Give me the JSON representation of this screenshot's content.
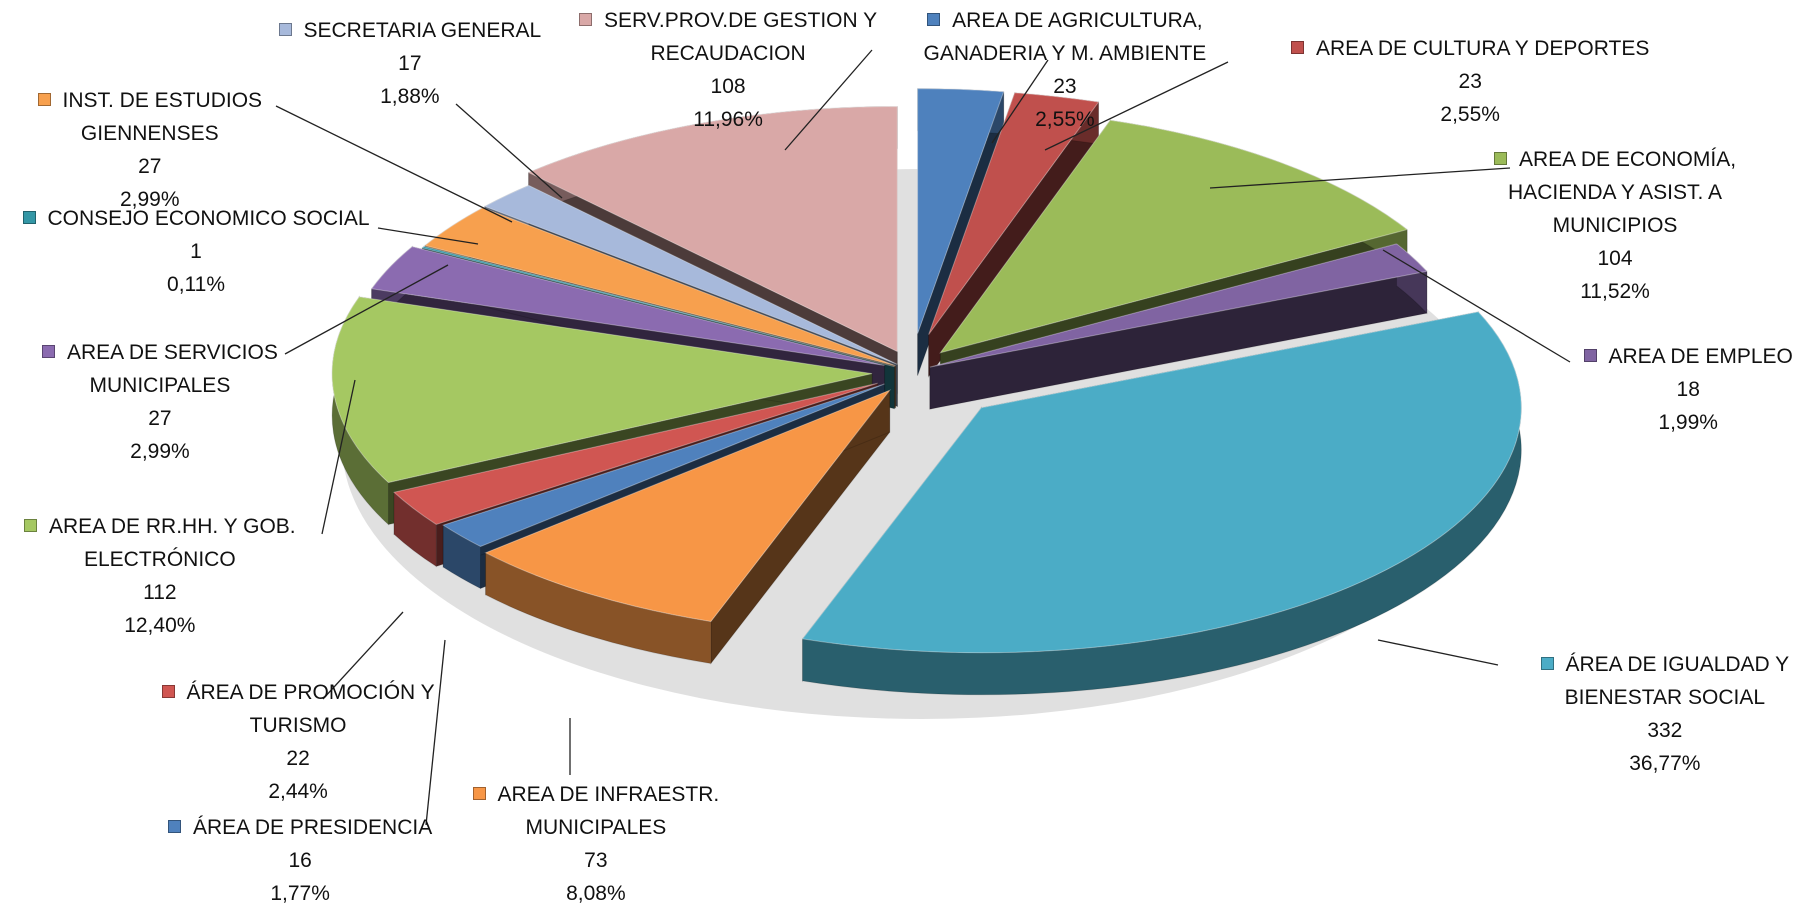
{
  "chart_data": {
    "type": "pie",
    "style": "3d-exploded",
    "title": "",
    "slices": [
      {
        "label": "AREA DE AGRICULTURA,\nGANADERIA  Y M. AMBIENTE",
        "value": 23,
        "percent": "2,55%",
        "color": "#4E81BD"
      },
      {
        "label": "AREA DE CULTURA Y DEPORTES",
        "value": 23,
        "percent": "2,55%",
        "color": "#C0504D"
      },
      {
        "label": "AREA DE ECONOMÍA,\nHACIENDA Y ASIST. A\nMUNICIPIOS",
        "value": 104,
        "percent": "11,52%",
        "color": "#9BBB59"
      },
      {
        "label": "AREA DE EMPLEO",
        "value": 18,
        "percent": "1,99%",
        "color": "#8064A2"
      },
      {
        "label": "ÁREA DE IGUALDAD Y\nBIENESTAR SOCIAL",
        "value": 332,
        "percent": "36,77%",
        "color": "#4BACC6"
      },
      {
        "label": "AREA DE INFRAESTR.\nMUNICIPALES",
        "value": 73,
        "percent": "8,08%",
        "color": "#F79646"
      },
      {
        "label": "ÁREA DE PRESIDENCIA",
        "value": 16,
        "percent": "1,77%",
        "color": "#4F81BD"
      },
      {
        "label": "ÁREA DE PROMOCIÓN Y\nTURISMO",
        "value": 22,
        "percent": "2,44%",
        "color": "#D05652"
      },
      {
        "label": "AREA DE RR.HH. Y GOB.\nELECTRÓNICO",
        "value": 112,
        "percent": "12,40%",
        "color": "#A5C862"
      },
      {
        "label": "AREA DE SERVICIOS\nMUNICIPALES",
        "value": 27,
        "percent": "2,99%",
        "color": "#8B6BB0"
      },
      {
        "label": "CONSEJO ECONOMICO SOCIAL",
        "value": 1,
        "percent": "0,11%",
        "color": "#3497A6"
      },
      {
        "label": "INST. DE ESTUDIOS\nGIENNENSES",
        "value": 27,
        "percent": "2,99%",
        "color": "#F7A04E"
      },
      {
        "label": "SECRETARIA GENERAL",
        "value": 17,
        "percent": "1,88%",
        "color": "#A7B9DB"
      },
      {
        "label": "SERV.PROV.DE GESTION Y\nRECAUDACION",
        "value": 108,
        "percent": "11,96%",
        "color": "#D9A8A7"
      }
    ]
  }
}
